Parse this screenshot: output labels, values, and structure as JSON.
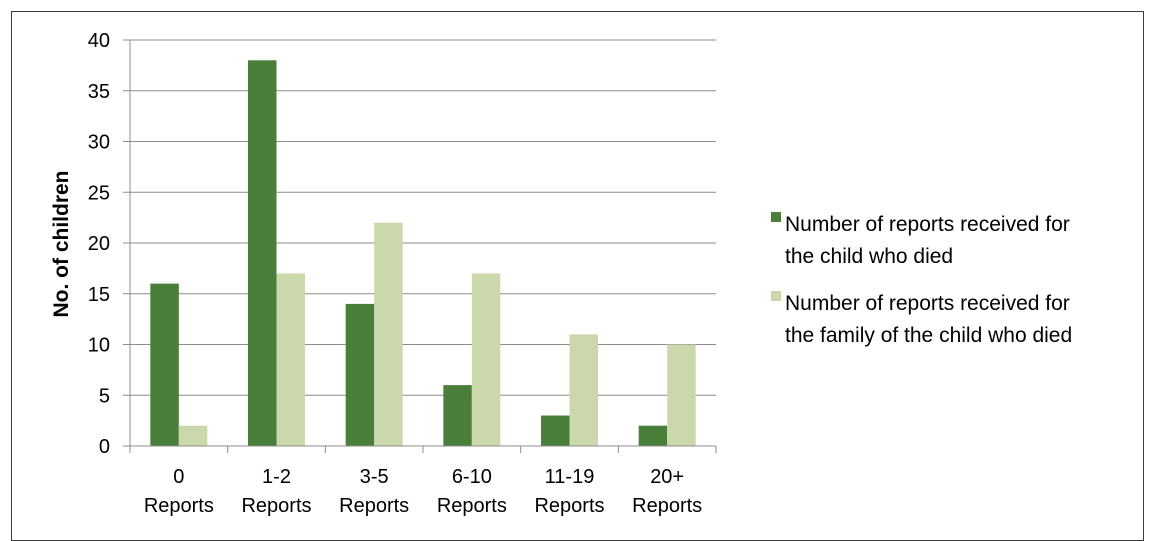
{
  "chart_data": {
    "type": "bar",
    "title": "",
    "xlabel": "",
    "ylabel": "No. of children",
    "ylim": [
      0,
      40
    ],
    "yticks": [
      0,
      5,
      10,
      15,
      20,
      25,
      30,
      35,
      40
    ],
    "grid": true,
    "legend_position": "right",
    "categories": [
      [
        "0",
        "Reports"
      ],
      [
        "1-2",
        "Reports"
      ],
      [
        "3-5",
        "Reports"
      ],
      [
        "6-10",
        "Reports"
      ],
      [
        "11-19",
        "Reports"
      ],
      [
        "20+",
        "Reports"
      ]
    ],
    "series": [
      {
        "name": [
          "Number of reports received for",
          "the child who died"
        ],
        "color": "#4a7f3a",
        "values": [
          16,
          38,
          14,
          6,
          3,
          2
        ]
      },
      {
        "name": [
          "Number of reports received for",
          "the family of the child who died"
        ],
        "color": "#cad8ac",
        "values": [
          2,
          17,
          22,
          17,
          11,
          10
        ]
      }
    ]
  }
}
